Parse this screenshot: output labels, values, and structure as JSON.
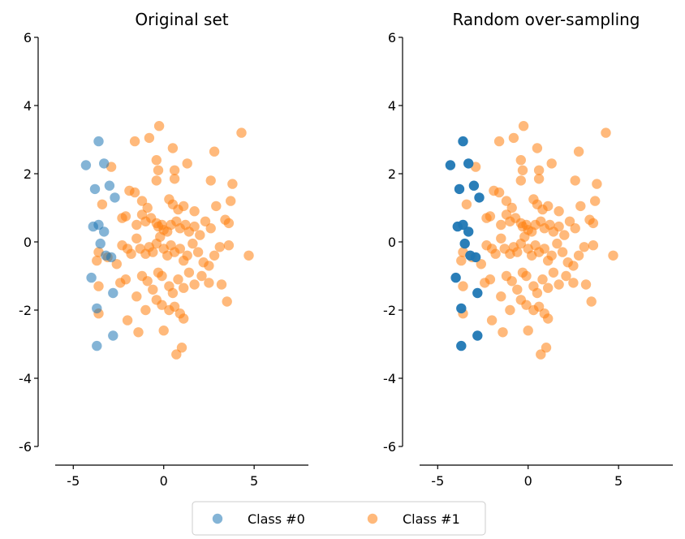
{
  "colors": {
    "class0": "#1f77b4",
    "class1": "#ff7f0e",
    "axis": "#000000"
  },
  "legend": {
    "placement": "bottom-center",
    "entries": [
      {
        "label": "Class #0",
        "color": "#1f77b4"
      },
      {
        "label": "Class #1",
        "color": "#ff7f0e"
      }
    ]
  },
  "chart_data": [
    {
      "type": "scatter",
      "title": "Original set",
      "xlim": [
        -6,
        8
      ],
      "ylim": [
        -6,
        6
      ],
      "xticks": [
        -5,
        0,
        5
      ],
      "yticks": [
        -6,
        -4,
        -2,
        0,
        2,
        4,
        6
      ],
      "grid": false,
      "point_alpha": 0.55,
      "series": [
        {
          "name": "Class #0",
          "color": "#1f77b4",
          "points": [
            [
              -4.3,
              2.25
            ],
            [
              -3.6,
              2.95
            ],
            [
              -3.3,
              2.3
            ],
            [
              -3.8,
              1.55
            ],
            [
              -3.0,
              1.65
            ],
            [
              -2.7,
              1.3
            ],
            [
              -3.9,
              0.45
            ],
            [
              -3.6,
              0.5
            ],
            [
              -3.3,
              0.3
            ],
            [
              -3.5,
              -0.05
            ],
            [
              -3.2,
              -0.4
            ],
            [
              -2.9,
              -0.45
            ],
            [
              -4.0,
              -1.05
            ],
            [
              -2.8,
              -1.5
            ],
            [
              -3.7,
              -1.95
            ],
            [
              -2.8,
              -2.75
            ],
            [
              -3.7,
              -3.05
            ]
          ]
        },
        {
          "name": "Class #1",
          "color": "#ff7f0e",
          "points": [
            [
              -2.9,
              2.2
            ],
            [
              -1.6,
              2.95
            ],
            [
              -0.8,
              3.05
            ],
            [
              -0.25,
              3.4
            ],
            [
              0.5,
              2.75
            ],
            [
              4.3,
              3.2
            ],
            [
              2.8,
              2.65
            ],
            [
              -0.4,
              2.4
            ],
            [
              -0.3,
              2.1
            ],
            [
              -0.4,
              1.8
            ],
            [
              0.6,
              2.1
            ],
            [
              0.6,
              1.85
            ],
            [
              1.3,
              2.3
            ],
            [
              2.6,
              1.8
            ],
            [
              3.8,
              1.7
            ],
            [
              -3.4,
              1.1
            ],
            [
              -1.9,
              1.5
            ],
            [
              -1.6,
              1.45
            ],
            [
              -1.2,
              1.2
            ],
            [
              -0.9,
              1.0
            ],
            [
              0.3,
              1.25
            ],
            [
              0.5,
              1.1
            ],
            [
              0.8,
              0.95
            ],
            [
              1.1,
              1.05
            ],
            [
              1.7,
              0.9
            ],
            [
              2.9,
              1.05
            ],
            [
              3.7,
              1.2
            ],
            [
              -2.3,
              0.7
            ],
            [
              -2.1,
              0.75
            ],
            [
              -1.5,
              0.5
            ],
            [
              -1.2,
              0.8
            ],
            [
              -1.0,
              0.6
            ],
            [
              -0.7,
              0.7
            ],
            [
              -0.4,
              0.55
            ],
            [
              -0.3,
              0.45
            ],
            [
              -0.1,
              0.5
            ],
            [
              0.0,
              0.35
            ],
            [
              0.2,
              0.3
            ],
            [
              0.4,
              0.5
            ],
            [
              0.7,
              0.6
            ],
            [
              0.9,
              0.4
            ],
            [
              1.2,
              0.5
            ],
            [
              1.4,
              0.3
            ],
            [
              1.7,
              0.45
            ],
            [
              2.0,
              0.2
            ],
            [
              2.3,
              0.6
            ],
            [
              2.6,
              0.4
            ],
            [
              3.4,
              0.65
            ],
            [
              3.6,
              0.55
            ],
            [
              -3.6,
              -0.3
            ],
            [
              -3.7,
              -0.55
            ],
            [
              -3.1,
              -0.45
            ],
            [
              -2.6,
              -0.65
            ],
            [
              -2.3,
              -0.1
            ],
            [
              -2.0,
              -0.2
            ],
            [
              -1.8,
              -0.35
            ],
            [
              -1.5,
              0.1
            ],
            [
              -1.3,
              -0.2
            ],
            [
              -1.0,
              -0.35
            ],
            [
              -0.8,
              -0.15
            ],
            [
              -0.6,
              -0.3
            ],
            [
              -0.4,
              -0.05
            ],
            [
              -0.2,
              0.15
            ],
            [
              0.0,
              -0.2
            ],
            [
              0.2,
              -0.4
            ],
            [
              0.4,
              -0.1
            ],
            [
              0.6,
              -0.3
            ],
            [
              0.9,
              -0.2
            ],
            [
              1.1,
              -0.55
            ],
            [
              1.3,
              -0.4
            ],
            [
              1.6,
              -0.05
            ],
            [
              1.9,
              -0.3
            ],
            [
              2.2,
              -0.6
            ],
            [
              2.5,
              -0.7
            ],
            [
              2.8,
              -0.4
            ],
            [
              3.1,
              -0.15
            ],
            [
              3.6,
              -0.1
            ],
            [
              4.7,
              -0.4
            ],
            [
              -3.6,
              -1.3
            ],
            [
              -2.4,
              -1.2
            ],
            [
              -2.1,
              -1.1
            ],
            [
              -1.5,
              -1.6
            ],
            [
              -1.2,
              -1.0
            ],
            [
              -0.9,
              -1.15
            ],
            [
              -0.6,
              -1.4
            ],
            [
              -0.3,
              -0.9
            ],
            [
              -0.1,
              -1.0
            ],
            [
              0.3,
              -1.3
            ],
            [
              0.5,
              -1.5
            ],
            [
              0.8,
              -1.1
            ],
            [
              1.1,
              -1.35
            ],
            [
              1.4,
              -0.9
            ],
            [
              1.7,
              -1.25
            ],
            [
              2.1,
              -1.0
            ],
            [
              2.5,
              -1.2
            ],
            [
              3.2,
              -1.25
            ],
            [
              -3.6,
              -2.1
            ],
            [
              -2.0,
              -2.3
            ],
            [
              -1.0,
              -2.0
            ],
            [
              -0.4,
              -1.7
            ],
            [
              -0.1,
              -1.85
            ],
            [
              0.3,
              -2.0
            ],
            [
              0.6,
              -1.9
            ],
            [
              0.9,
              -2.1
            ],
            [
              1.1,
              -2.25
            ],
            [
              -1.4,
              -2.65
            ],
            [
              0.0,
              -2.6
            ],
            [
              0.7,
              -3.3
            ],
            [
              1.0,
              -3.1
            ],
            [
              3.5,
              -1.75
            ]
          ]
        }
      ]
    },
    {
      "type": "scatter",
      "title": "Random over-sampling",
      "xlim": [
        -6,
        8
      ],
      "ylim": [
        -6,
        6
      ],
      "xticks": [
        -5,
        0,
        5
      ],
      "yticks": [
        -6,
        -4,
        -2,
        0,
        2,
        4,
        6
      ],
      "grid": false,
      "point_alpha": 0.55,
      "class0_overplotted": true,
      "series": [
        {
          "name": "Class #0",
          "color": "#1f77b4",
          "points": [
            [
              -4.3,
              2.25
            ],
            [
              -3.6,
              2.95
            ],
            [
              -3.3,
              2.3
            ],
            [
              -3.8,
              1.55
            ],
            [
              -3.0,
              1.65
            ],
            [
              -2.7,
              1.3
            ],
            [
              -3.9,
              0.45
            ],
            [
              -3.6,
              0.5
            ],
            [
              -3.3,
              0.3
            ],
            [
              -3.5,
              -0.05
            ],
            [
              -3.2,
              -0.4
            ],
            [
              -2.9,
              -0.45
            ],
            [
              -4.0,
              -1.05
            ],
            [
              -2.8,
              -1.5
            ],
            [
              -3.7,
              -1.95
            ],
            [
              -2.8,
              -2.75
            ],
            [
              -3.7,
              -3.05
            ]
          ]
        },
        {
          "name": "Class #1",
          "color": "#ff7f0e",
          "points": [
            [
              -2.9,
              2.2
            ],
            [
              -1.6,
              2.95
            ],
            [
              -0.8,
              3.05
            ],
            [
              -0.25,
              3.4
            ],
            [
              0.5,
              2.75
            ],
            [
              4.3,
              3.2
            ],
            [
              2.8,
              2.65
            ],
            [
              -0.4,
              2.4
            ],
            [
              -0.3,
              2.1
            ],
            [
              -0.4,
              1.8
            ],
            [
              0.6,
              2.1
            ],
            [
              0.6,
              1.85
            ],
            [
              1.3,
              2.3
            ],
            [
              2.6,
              1.8
            ],
            [
              3.8,
              1.7
            ],
            [
              -3.4,
              1.1
            ],
            [
              -1.9,
              1.5
            ],
            [
              -1.6,
              1.45
            ],
            [
              -1.2,
              1.2
            ],
            [
              -0.9,
              1.0
            ],
            [
              0.3,
              1.25
            ],
            [
              0.5,
              1.1
            ],
            [
              0.8,
              0.95
            ],
            [
              1.1,
              1.05
            ],
            [
              1.7,
              0.9
            ],
            [
              2.9,
              1.05
            ],
            [
              3.7,
              1.2
            ],
            [
              -2.3,
              0.7
            ],
            [
              -2.1,
              0.75
            ],
            [
              -1.5,
              0.5
            ],
            [
              -1.2,
              0.8
            ],
            [
              -1.0,
              0.6
            ],
            [
              -0.7,
              0.7
            ],
            [
              -0.4,
              0.55
            ],
            [
              -0.3,
              0.45
            ],
            [
              -0.1,
              0.5
            ],
            [
              0.0,
              0.35
            ],
            [
              0.2,
              0.3
            ],
            [
              0.4,
              0.5
            ],
            [
              0.7,
              0.6
            ],
            [
              0.9,
              0.4
            ],
            [
              1.2,
              0.5
            ],
            [
              1.4,
              0.3
            ],
            [
              1.7,
              0.45
            ],
            [
              2.0,
              0.2
            ],
            [
              2.3,
              0.6
            ],
            [
              2.6,
              0.4
            ],
            [
              3.4,
              0.65
            ],
            [
              3.6,
              0.55
            ],
            [
              -3.6,
              -0.3
            ],
            [
              -3.7,
              -0.55
            ],
            [
              -3.1,
              -0.45
            ],
            [
              -2.6,
              -0.65
            ],
            [
              -2.3,
              -0.1
            ],
            [
              -2.0,
              -0.2
            ],
            [
              -1.8,
              -0.35
            ],
            [
              -1.5,
              0.1
            ],
            [
              -1.3,
              -0.2
            ],
            [
              -1.0,
              -0.35
            ],
            [
              -0.8,
              -0.15
            ],
            [
              -0.6,
              -0.3
            ],
            [
              -0.4,
              -0.05
            ],
            [
              -0.2,
              0.15
            ],
            [
              0.0,
              -0.2
            ],
            [
              0.2,
              -0.4
            ],
            [
              0.4,
              -0.1
            ],
            [
              0.6,
              -0.3
            ],
            [
              0.9,
              -0.2
            ],
            [
              1.1,
              -0.55
            ],
            [
              1.3,
              -0.4
            ],
            [
              1.6,
              -0.05
            ],
            [
              1.9,
              -0.3
            ],
            [
              2.2,
              -0.6
            ],
            [
              2.5,
              -0.7
            ],
            [
              2.8,
              -0.4
            ],
            [
              3.1,
              -0.15
            ],
            [
              3.6,
              -0.1
            ],
            [
              4.7,
              -0.4
            ],
            [
              -3.6,
              -1.3
            ],
            [
              -2.4,
              -1.2
            ],
            [
              -2.1,
              -1.1
            ],
            [
              -1.5,
              -1.6
            ],
            [
              -1.2,
              -1.0
            ],
            [
              -0.9,
              -1.15
            ],
            [
              -0.6,
              -1.4
            ],
            [
              -0.3,
              -0.9
            ],
            [
              -0.1,
              -1.0
            ],
            [
              0.3,
              -1.3
            ],
            [
              0.5,
              -1.5
            ],
            [
              0.8,
              -1.1
            ],
            [
              1.1,
              -1.35
            ],
            [
              1.4,
              -0.9
            ],
            [
              1.7,
              -1.25
            ],
            [
              2.1,
              -1.0
            ],
            [
              2.5,
              -1.2
            ],
            [
              3.2,
              -1.25
            ],
            [
              -3.6,
              -2.1
            ],
            [
              -2.0,
              -2.3
            ],
            [
              -1.0,
              -2.0
            ],
            [
              -0.4,
              -1.7
            ],
            [
              -0.1,
              -1.85
            ],
            [
              0.3,
              -2.0
            ],
            [
              0.6,
              -1.9
            ],
            [
              0.9,
              -2.1
            ],
            [
              1.1,
              -2.25
            ],
            [
              -1.4,
              -2.65
            ],
            [
              0.0,
              -2.6
            ],
            [
              0.7,
              -3.3
            ],
            [
              1.0,
              -3.1
            ],
            [
              3.5,
              -1.75
            ]
          ]
        }
      ]
    }
  ]
}
